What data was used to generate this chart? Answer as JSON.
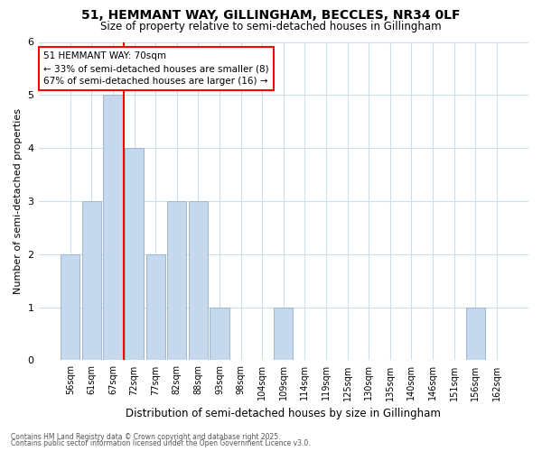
{
  "title1": "51, HEMMANT WAY, GILLINGHAM, BECCLES, NR34 0LF",
  "title2": "Size of property relative to semi-detached houses in Gillingham",
  "xlabel": "Distribution of semi-detached houses by size in Gillingham",
  "ylabel": "Number of semi-detached properties",
  "categories": [
    "56sqm",
    "61sqm",
    "67sqm",
    "72sqm",
    "77sqm",
    "82sqm",
    "88sqm",
    "93sqm",
    "98sqm",
    "104sqm",
    "109sqm",
    "114sqm",
    "119sqm",
    "125sqm",
    "130sqm",
    "135sqm",
    "140sqm",
    "146sqm",
    "151sqm",
    "156sqm",
    "162sqm"
  ],
  "values": [
    2,
    3,
    5,
    4,
    2,
    3,
    3,
    1,
    0,
    0,
    1,
    0,
    0,
    0,
    0,
    0,
    0,
    0,
    0,
    1,
    0
  ],
  "bar_color": "#c5d8ed",
  "bar_edgecolor": "#9bb8d4",
  "red_line_x": 2.5,
  "annotation_title": "51 HEMMANT WAY: 70sqm",
  "annotation_line1": "← 33% of semi-detached houses are smaller (8)",
  "annotation_line2": "67% of semi-detached houses are larger (16) →",
  "ylim": [
    0,
    6
  ],
  "yticks": [
    0,
    1,
    2,
    3,
    4,
    5,
    6
  ],
  "footer1": "Contains HM Land Registry data © Crown copyright and database right 2025.",
  "footer2": "Contains public sector information licensed under the Open Government Licence v3.0.",
  "bg_color": "#ffffff",
  "grid_color": "#d0dce8"
}
